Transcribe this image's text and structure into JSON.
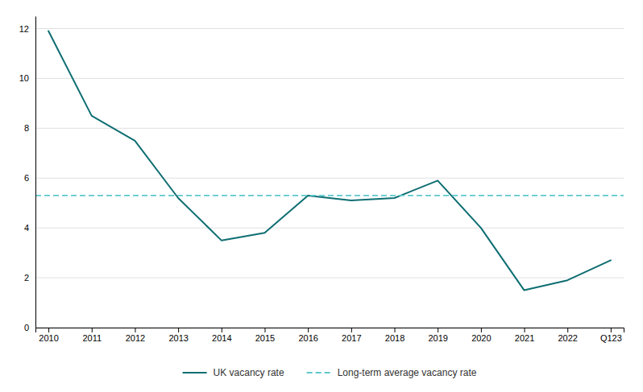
{
  "chart_data": {
    "type": "line",
    "categories": [
      "2010",
      "2011",
      "2012",
      "2013",
      "2014",
      "2015",
      "2016",
      "2017",
      "2018",
      "2019",
      "2020",
      "2021",
      "2022",
      "Q123"
    ],
    "series": [
      {
        "name": "UK vacancy rate",
        "color": "#0e6e72",
        "line_style": "solid",
        "values": [
          11.9,
          8.5,
          7.5,
          5.2,
          3.5,
          3.8,
          5.3,
          5.1,
          5.2,
          5.9,
          4.0,
          1.5,
          1.9,
          2.7
        ]
      },
      {
        "name": "Long-term average vacancy rate",
        "color": "#5ec8cc",
        "line_style": "dashed",
        "type": "hline",
        "value": 5.3
      }
    ],
    "ylim": [
      0,
      12.5
    ],
    "yticks": [
      0,
      2,
      4,
      6,
      8,
      10,
      12
    ],
    "grid": true,
    "legend": "bottom"
  }
}
